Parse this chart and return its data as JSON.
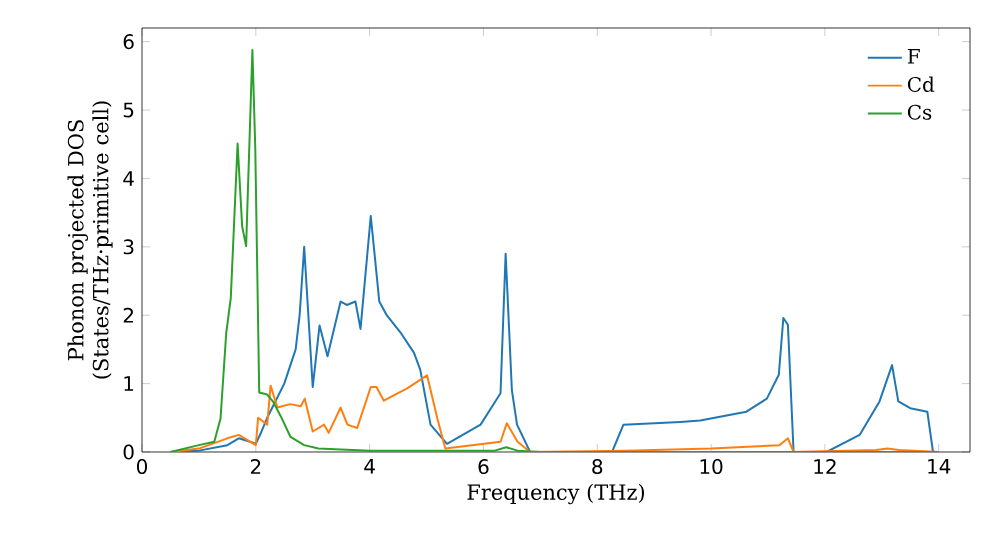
{
  "chart_data": {
    "type": "line",
    "xlabel": "Frequency (THz)",
    "ylabel": "Phonon projected DOS (States/THz·primitive cell)",
    "xlim": [
      0,
      14.55
    ],
    "ylim": [
      0,
      6.2
    ],
    "xticks": [
      0,
      2,
      4,
      6,
      8,
      10,
      12,
      14
    ],
    "yticks": [
      0,
      1,
      2,
      3,
      4,
      5,
      6
    ],
    "grid": false,
    "legend": "top right",
    "marker": "none",
    "line_style": "solid",
    "series": [
      {
        "name": "F",
        "color": "#1f77b4",
        "x": [
          0.5,
          1.0,
          1.5,
          1.7,
          1.9,
          2.0,
          2.1,
          2.2,
          2.5,
          2.7,
          2.77,
          2.85,
          3.0,
          3.12,
          3.26,
          3.49,
          3.6,
          3.75,
          3.84,
          4.02,
          4.17,
          4.3,
          4.54,
          4.78,
          4.89,
          5.07,
          5.36,
          5.95,
          6.3,
          6.39,
          6.5,
          6.59,
          6.82,
          8.26,
          8.46,
          9.46,
          9.81,
          10.62,
          10.98,
          11.19,
          11.27,
          11.35,
          11.45,
          12.03,
          12.61,
          12.96,
          13.18,
          13.29,
          13.5,
          13.8,
          13.9,
          14.0
        ],
        "values": [
          0,
          0.02,
          0.1,
          0.2,
          0.15,
          0.12,
          0.3,
          0.5,
          1.0,
          1.5,
          2.0,
          3.0,
          0.95,
          1.85,
          1.4,
          2.2,
          2.15,
          2.2,
          1.8,
          3.45,
          2.2,
          2.0,
          1.75,
          1.45,
          1.2,
          0.4,
          0.12,
          0.4,
          0.86,
          2.9,
          0.9,
          0.4,
          0,
          0,
          0.4,
          0.44,
          0.46,
          0.59,
          0.78,
          1.13,
          1.96,
          1.86,
          0,
          0,
          0.25,
          0.74,
          1.27,
          0.74,
          0.64,
          0.59,
          0,
          0
        ]
      },
      {
        "name": "Cd",
        "color": "#ff7f0e",
        "x": [
          0.5,
          1.0,
          1.5,
          1.7,
          2.0,
          2.04,
          2.2,
          2.26,
          2.38,
          2.6,
          2.79,
          2.86,
          3.0,
          3.2,
          3.28,
          3.49,
          3.61,
          3.78,
          4.02,
          4.12,
          4.25,
          4.43,
          4.66,
          5.01,
          5.19,
          5.33,
          6.3,
          6.41,
          6.6,
          6.82,
          8.5,
          10.0,
          11.2,
          11.35,
          11.45,
          12.9,
          13.1,
          13.3,
          14.0
        ],
        "values": [
          0,
          0.05,
          0.2,
          0.25,
          0.1,
          0.5,
          0.4,
          0.97,
          0.65,
          0.7,
          0.67,
          0.78,
          0.3,
          0.4,
          0.28,
          0.65,
          0.4,
          0.35,
          0.95,
          0.95,
          0.75,
          0.83,
          0.93,
          1.12,
          0.49,
          0.05,
          0.15,
          0.42,
          0.15,
          0,
          0.02,
          0.05,
          0.1,
          0.2,
          0,
          0.03,
          0.05,
          0.03,
          0
        ]
      },
      {
        "name": "Cs",
        "color": "#2ca02c",
        "x": [
          0.5,
          1.0,
          1.27,
          1.38,
          1.48,
          1.56,
          1.68,
          1.76,
          1.83,
          1.94,
          1.99,
          2.06,
          2.2,
          2.3,
          2.44,
          2.61,
          2.85,
          3.1,
          4.0,
          6.2,
          6.4,
          6.6,
          7.0,
          14.0
        ],
        "values": [
          0,
          0.1,
          0.15,
          0.49,
          1.74,
          2.25,
          4.51,
          3.3,
          3.01,
          5.88,
          4.46,
          0.87,
          0.84,
          0.74,
          0.52,
          0.22,
          0.1,
          0.05,
          0.02,
          0.02,
          0.07,
          0.02,
          0,
          0
        ]
      }
    ]
  }
}
